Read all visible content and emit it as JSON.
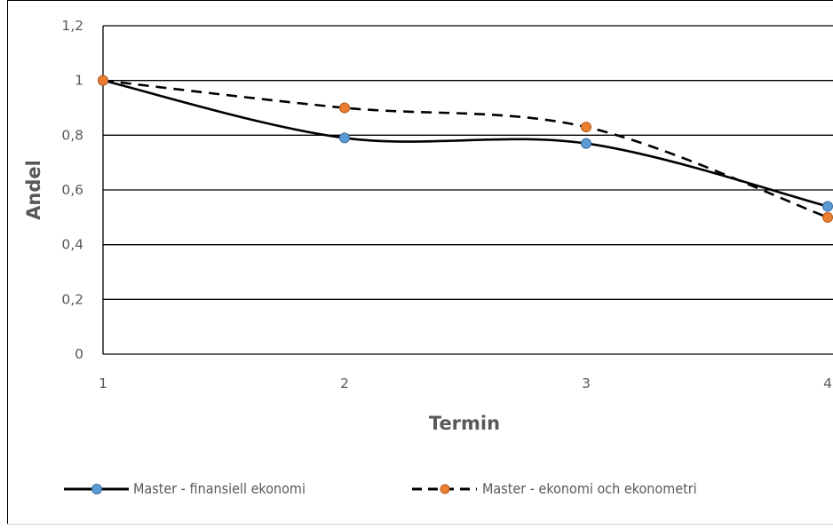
{
  "chart_data": {
    "type": "line",
    "x": [
      1,
      2,
      3,
      4
    ],
    "series": [
      {
        "name": "Master - finansiell ekonomi",
        "values": [
          1,
          0.79,
          0.77,
          0.54
        ],
        "color": "#000000",
        "marker_color": "#5B9BD5",
        "dash": "solid"
      },
      {
        "name": "Master - ekonomi och ekonometri",
        "values": [
          1,
          0.9,
          0.83,
          0.5
        ],
        "color": "#000000",
        "marker_color": "#ED7D31",
        "dash": "dashed"
      }
    ],
    "xlabel": "Termin",
    "ylabel": "Andel",
    "xlim": [
      1,
      4
    ],
    "ylim": [
      0,
      1.2
    ],
    "x_ticks": [
      "1",
      "2",
      "3",
      "4"
    ],
    "y_ticks": [
      "0",
      "0,2",
      "0,4",
      "0,6",
      "0,8",
      "1",
      "1,2"
    ],
    "grid": "horizontal",
    "legend_position": "bottom"
  }
}
